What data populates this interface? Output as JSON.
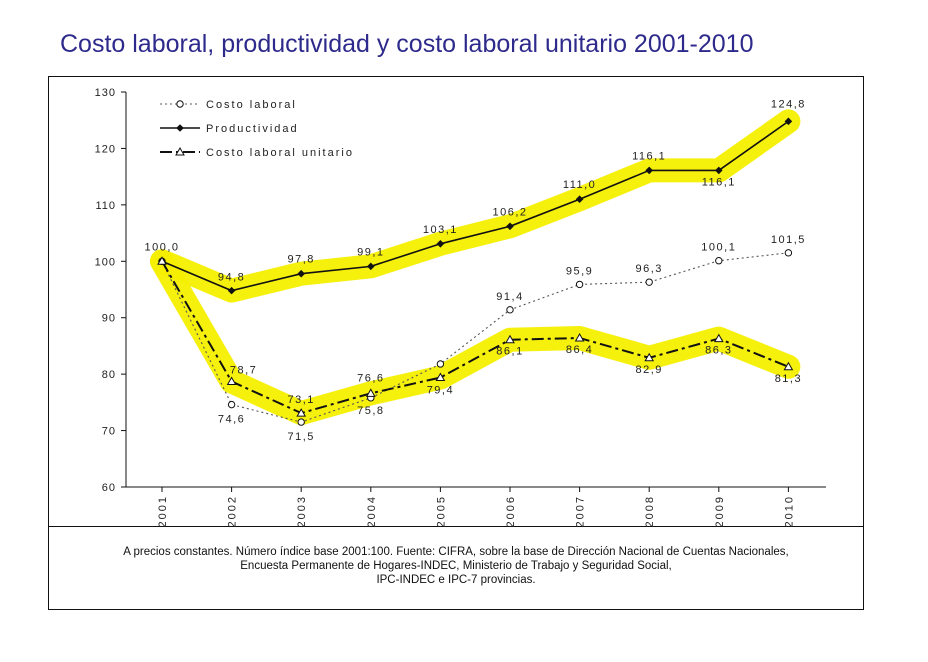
{
  "title": "Costo laboral, productividad y costo laboral unitario 2001-2010",
  "source_lines": [
    "A precios constantes. Número índice base 2001:100. Fuente: CIFRA, sobre la base de Dirección Nacional de Cuentas Nacionales,",
    "Encuesta Permanente de Hogares-INDEC, Ministerio de Trabajo y Seguridad Social,",
    "IPC-INDEC e IPC-7 provincias."
  ],
  "colors": {
    "title": "#2e2a8c",
    "highlight": "#f5ef00",
    "line": "#111111",
    "dotted": "#555555"
  },
  "chart_data": {
    "type": "line",
    "categories": [
      "2001",
      "2002",
      "2003",
      "2004",
      "2005",
      "2006",
      "2007",
      "2008",
      "2009",
      "2010"
    ],
    "ylim": [
      60,
      130
    ],
    "yticks": [
      "60",
      "70",
      "80",
      "90",
      "100",
      "110",
      "120",
      "130"
    ],
    "grid": false,
    "legend_position": "top-left",
    "series": [
      {
        "name": "Costo laboral",
        "marker": "circle",
        "style": "dotted",
        "values": [
          100.0,
          74.6,
          71.5,
          75.8,
          81.8,
          91.4,
          95.9,
          96.3,
          100.1,
          101.5
        ],
        "labels": [
          "",
          "74,6",
          "71,5",
          "75,8",
          "",
          "91,4",
          "95,9",
          "96,3",
          "100,1",
          "101,5"
        ]
      },
      {
        "name": "Productividad",
        "marker": "diamond",
        "style": "solid",
        "values": [
          100.0,
          94.8,
          97.8,
          99.1,
          103.1,
          106.2,
          111.0,
          116.1,
          116.1,
          124.8
        ],
        "labels": [
          "100,0",
          "94,8",
          "97,8",
          "99,1",
          "103,1",
          "106,2",
          "111,0",
          "116,1",
          "116,1",
          "124,8"
        ]
      },
      {
        "name": "Costo laboral unitario",
        "marker": "triangle",
        "style": "dashdot",
        "values": [
          100.0,
          78.7,
          73.1,
          76.6,
          79.4,
          86.1,
          86.4,
          82.9,
          86.3,
          81.3
        ],
        "labels": [
          "",
          "78,7",
          "73,1",
          "76,6",
          "79,4",
          "86,1",
          "86,4",
          "82,9",
          "86,3",
          "81,3"
        ]
      }
    ]
  }
}
